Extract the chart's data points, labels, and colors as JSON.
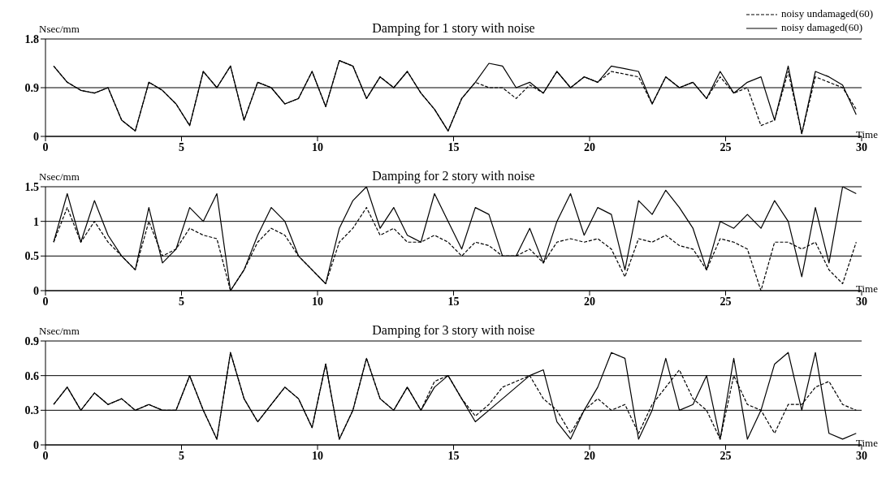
{
  "chart_data": [
    {
      "type": "line",
      "title": "Damping for 1 story with noise",
      "ylabel": "Nsec/mm",
      "xlabel": "Time",
      "xlim": [
        0,
        30
      ],
      "xticks": [
        0,
        5,
        10,
        15,
        20,
        25,
        30
      ],
      "ylim": [
        0,
        1.8
      ],
      "yticks": [
        0,
        0.9,
        1.8
      ],
      "grid": "y",
      "legend": "top right",
      "x": [
        0.3,
        0.8,
        1.3,
        1.8,
        2.3,
        2.8,
        3.3,
        3.8,
        4.3,
        4.8,
        5.3,
        5.8,
        6.3,
        6.8,
        7.3,
        7.8,
        8.3,
        8.8,
        9.3,
        9.8,
        10.3,
        10.8,
        11.3,
        11.8,
        12.3,
        12.8,
        13.3,
        13.8,
        14.3,
        14.8,
        15.3,
        15.8,
        16.3,
        16.8,
        17.3,
        17.8,
        18.3,
        18.8,
        19.3,
        19.8,
        20.3,
        20.8,
        21.3,
        21.8,
        22.3,
        22.8,
        23.3,
        23.8,
        24.3,
        24.8,
        25.3,
        25.8,
        26.3,
        26.8,
        27.3,
        27.8,
        28.3,
        28.8,
        29.3,
        29.8
      ],
      "series": [
        {
          "name": "noisy undamaged(60)",
          "color": "#000000",
          "line_style": "dashed",
          "values": [
            1.3,
            1.0,
            0.85,
            0.8,
            0.9,
            0.3,
            0.1,
            1.0,
            0.85,
            0.6,
            0.2,
            1.2,
            0.9,
            1.3,
            0.3,
            1.0,
            0.9,
            0.6,
            0.7,
            1.2,
            0.55,
            1.4,
            1.3,
            0.7,
            1.1,
            0.9,
            1.2,
            0.8,
            0.5,
            0.1,
            0.7,
            1.0,
            0.9,
            0.9,
            0.7,
            0.95,
            0.8,
            1.2,
            0.9,
            1.1,
            1.0,
            1.2,
            1.15,
            1.1,
            0.6,
            1.1,
            0.9,
            1.0,
            0.7,
            1.1,
            0.8,
            0.9,
            0.2,
            0.3,
            1.2,
            0.05,
            1.1,
            1.0,
            0.9,
            0.5
          ]
        },
        {
          "name": "noisy damaged(60)",
          "color": "#000000",
          "line_style": "solid",
          "values": [
            1.3,
            1.0,
            0.85,
            0.8,
            0.9,
            0.3,
            0.1,
            1.0,
            0.85,
            0.6,
            0.2,
            1.2,
            0.9,
            1.3,
            0.3,
            1.0,
            0.9,
            0.6,
            0.7,
            1.2,
            0.55,
            1.4,
            1.3,
            0.7,
            1.1,
            0.9,
            1.2,
            0.8,
            0.5,
            0.1,
            0.7,
            1.0,
            1.35,
            1.3,
            0.9,
            1.0,
            0.8,
            1.2,
            0.9,
            1.1,
            1.0,
            1.3,
            1.25,
            1.2,
            0.6,
            1.1,
            0.9,
            1.0,
            0.7,
            1.2,
            0.8,
            1.0,
            1.1,
            0.3,
            1.3,
            0.05,
            1.2,
            1.1,
            0.95,
            0.4
          ]
        }
      ]
    },
    {
      "type": "line",
      "title": "Damping for 2 story with noise",
      "ylabel": "Nsec/mm",
      "xlabel": "Time",
      "xlim": [
        0,
        30
      ],
      "xticks": [
        0,
        5,
        10,
        15,
        20,
        25,
        30
      ],
      "ylim": [
        0,
        1.5
      ],
      "yticks": [
        0,
        0.5,
        1,
        1.5
      ],
      "grid": "y",
      "x": [
        0.3,
        0.8,
        1.3,
        1.8,
        2.3,
        2.8,
        3.3,
        3.8,
        4.3,
        4.8,
        5.3,
        5.8,
        6.3,
        6.8,
        7.3,
        7.8,
        8.3,
        8.8,
        9.3,
        9.8,
        10.3,
        10.8,
        11.3,
        11.8,
        12.3,
        12.8,
        13.3,
        13.8,
        14.3,
        14.8,
        15.3,
        15.8,
        16.3,
        16.8,
        17.3,
        17.8,
        18.3,
        18.8,
        19.3,
        19.8,
        20.3,
        20.8,
        21.3,
        21.8,
        22.3,
        22.8,
        23.3,
        23.8,
        24.3,
        24.8,
        25.3,
        25.8,
        26.3,
        26.8,
        27.3,
        27.8,
        28.3,
        28.8,
        29.3,
        29.8
      ],
      "series": [
        {
          "color": "#000000",
          "line_style": "dashed",
          "values": [
            0.7,
            1.2,
            0.7,
            1.0,
            0.7,
            0.5,
            0.3,
            1.0,
            0.5,
            0.6,
            0.9,
            0.8,
            0.75,
            0.0,
            0.3,
            0.7,
            0.9,
            0.8,
            0.5,
            0.3,
            0.1,
            0.7,
            0.9,
            1.2,
            0.8,
            0.9,
            0.7,
            0.7,
            0.8,
            0.7,
            0.5,
            0.7,
            0.65,
            0.5,
            0.5,
            0.6,
            0.4,
            0.7,
            0.75,
            0.7,
            0.75,
            0.6,
            0.2,
            0.75,
            0.7,
            0.8,
            0.65,
            0.6,
            0.3,
            0.75,
            0.7,
            0.6,
            0.0,
            0.7,
            0.7,
            0.6,
            0.7,
            0.3,
            0.1,
            0.7
          ]
        },
        {
          "color": "#000000",
          "line_style": "solid",
          "values": [
            0.7,
            1.4,
            0.7,
            1.3,
            0.8,
            0.5,
            0.3,
            1.2,
            0.4,
            0.6,
            1.2,
            1.0,
            1.4,
            0.0,
            0.3,
            0.8,
            1.2,
            1.0,
            0.5,
            0.3,
            0.1,
            0.9,
            1.3,
            1.5,
            0.9,
            1.2,
            0.8,
            0.7,
            1.4,
            1.0,
            0.6,
            1.2,
            1.1,
            0.5,
            0.5,
            0.9,
            0.4,
            1.0,
            1.4,
            0.8,
            1.2,
            1.1,
            0.3,
            1.3,
            1.1,
            1.45,
            1.2,
            0.9,
            0.3,
            1.0,
            0.9,
            1.1,
            0.9,
            1.3,
            1.0,
            0.2,
            1.2,
            0.4,
            1.5,
            1.4
          ]
        }
      ]
    },
    {
      "type": "line",
      "title": "Damping for 3 story with noise",
      "ylabel": "Nsec/mm",
      "xlabel": "Time",
      "xlim": [
        0,
        30
      ],
      "xticks": [
        0,
        5,
        10,
        15,
        20,
        25,
        30
      ],
      "ylim": [
        0,
        0.9
      ],
      "yticks": [
        0,
        0.3,
        0.6,
        0.9
      ],
      "grid": "y",
      "x": [
        0.3,
        0.8,
        1.3,
        1.8,
        2.3,
        2.8,
        3.3,
        3.8,
        4.3,
        4.8,
        5.3,
        5.8,
        6.3,
        6.8,
        7.3,
        7.8,
        8.3,
        8.8,
        9.3,
        9.8,
        10.3,
        10.8,
        11.3,
        11.8,
        12.3,
        12.8,
        13.3,
        13.8,
        14.3,
        14.8,
        15.3,
        15.8,
        16.3,
        16.8,
        17.3,
        17.8,
        18.3,
        18.8,
        19.3,
        19.8,
        20.3,
        20.8,
        21.3,
        21.8,
        22.3,
        22.8,
        23.3,
        23.8,
        24.3,
        24.8,
        25.3,
        25.8,
        26.3,
        26.8,
        27.3,
        27.8,
        28.3,
        28.8,
        29.3,
        29.8
      ],
      "series": [
        {
          "color": "#000000",
          "line_style": "dashed",
          "values": [
            0.35,
            0.5,
            0.3,
            0.45,
            0.35,
            0.4,
            0.3,
            0.35,
            0.3,
            0.3,
            0.6,
            0.3,
            0.05,
            0.8,
            0.4,
            0.2,
            0.35,
            0.5,
            0.4,
            0.15,
            0.7,
            0.05,
            0.3,
            0.75,
            0.4,
            0.3,
            0.5,
            0.3,
            0.55,
            0.6,
            0.4,
            0.25,
            0.35,
            0.5,
            0.55,
            0.6,
            0.4,
            0.3,
            0.1,
            0.3,
            0.4,
            0.3,
            0.35,
            0.1,
            0.35,
            0.5,
            0.65,
            0.4,
            0.3,
            0.05,
            0.6,
            0.35,
            0.3,
            0.1,
            0.35,
            0.35,
            0.5,
            0.55,
            0.35,
            0.3
          ]
        },
        {
          "color": "#000000",
          "line_style": "solid",
          "values": [
            0.35,
            0.5,
            0.3,
            0.45,
            0.35,
            0.4,
            0.3,
            0.35,
            0.3,
            0.3,
            0.6,
            0.3,
            0.05,
            0.8,
            0.4,
            0.2,
            0.35,
            0.5,
            0.4,
            0.15,
            0.7,
            0.05,
            0.3,
            0.75,
            0.4,
            0.3,
            0.5,
            0.3,
            0.5,
            0.6,
            0.4,
            0.2,
            0.3,
            0.4,
            0.5,
            0.6,
            0.65,
            0.2,
            0.05,
            0.3,
            0.5,
            0.8,
            0.75,
            0.05,
            0.3,
            0.75,
            0.3,
            0.35,
            0.6,
            0.05,
            0.75,
            0.05,
            0.3,
            0.7,
            0.8,
            0.3,
            0.8,
            0.1,
            0.05,
            0.1
          ]
        }
      ]
    }
  ]
}
